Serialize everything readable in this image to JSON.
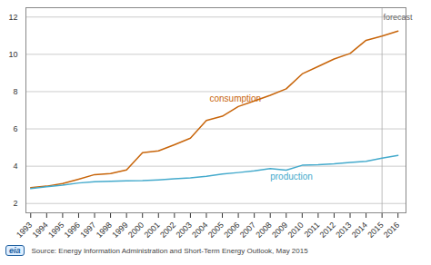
{
  "chart_data": {
    "type": "line",
    "x": [
      1993,
      1994,
      1995,
      1996,
      1997,
      1998,
      1999,
      2000,
      2001,
      2002,
      2003,
      2004,
      2005,
      2006,
      2007,
      2008,
      2009,
      2010,
      2011,
      2012,
      2013,
      2014,
      2015,
      2016
    ],
    "series": [
      {
        "name": "consumption",
        "color": "#c8650a",
        "values": [
          2.85,
          2.93,
          3.07,
          3.3,
          3.55,
          3.6,
          3.8,
          4.72,
          4.82,
          5.15,
          5.5,
          6.45,
          6.68,
          7.2,
          7.5,
          7.8,
          8.15,
          8.95,
          9.35,
          9.75,
          10.05,
          10.75,
          10.98,
          11.25
        ]
      },
      {
        "name": "production",
        "color": "#44aacc",
        "values": [
          2.8,
          2.9,
          2.99,
          3.1,
          3.17,
          3.19,
          3.21,
          3.23,
          3.27,
          3.32,
          3.37,
          3.46,
          3.58,
          3.66,
          3.75,
          3.87,
          3.79,
          4.05,
          4.08,
          4.13,
          4.2,
          4.26,
          4.43,
          4.58
        ]
      }
    ],
    "xlim": [
      1992.7,
      2016.5
    ],
    "xticks": [
      1993,
      1994,
      1995,
      1996,
      1997,
      1998,
      1999,
      2000,
      2001,
      2002,
      2003,
      2004,
      2005,
      2006,
      2007,
      2008,
      2009,
      2010,
      2011,
      2012,
      2013,
      2014,
      2015,
      2016
    ],
    "ylim": [
      1.5,
      12.5
    ],
    "yticks": [
      2,
      4,
      6,
      8,
      10,
      12
    ],
    "grid": true,
    "vline": {
      "x": 2015,
      "color": "#aaaaaa"
    },
    "annotations": [
      {
        "text": "consumption",
        "x": 2004.2,
        "y": 7.6,
        "color": "#c8650a"
      },
      {
        "text": "production",
        "x": 2008.0,
        "y": 3.45,
        "color": "#44aacc"
      },
      {
        "text": "forecast",
        "x": 2015.08,
        "y": 12.15,
        "color": "#666666"
      }
    ],
    "caption": "Source: Energy Information Administration and Short-Term Energy Outlook, May 2015",
    "logo": "eia"
  }
}
